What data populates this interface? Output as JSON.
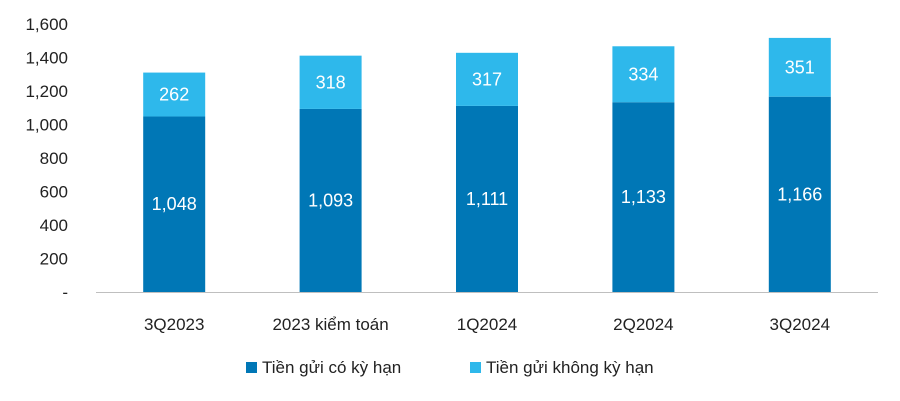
{
  "chart_data": {
    "type": "bar",
    "stacked": true,
    "categories": [
      "3Q2023",
      "2023 kiểm toán",
      "1Q2024",
      "2Q2024",
      "3Q2024"
    ],
    "series": [
      {
        "name": "Tiền gửi có kỳ hạn",
        "values": [
          1048,
          1093,
          1111,
          1133,
          1166
        ],
        "labels": [
          "1,048",
          "1,093",
          "1,111",
          "1,133",
          "1,166"
        ],
        "color": "#0077B6"
      },
      {
        "name": "Tiền gửi không kỳ hạn",
        "values": [
          262,
          318,
          317,
          334,
          351
        ],
        "labels": [
          "262",
          "318",
          "317",
          "334",
          "351"
        ],
        "color": "#2EB8EB"
      }
    ],
    "ylim": [
      0,
      1600
    ],
    "yticks": [
      0,
      200,
      400,
      600,
      800,
      1000,
      1200,
      1400,
      1600
    ],
    "ytick_labels": [
      "-",
      "200",
      "400",
      "600",
      "800",
      "1,000",
      "1,200",
      "1,400",
      "1,600"
    ],
    "grid": false,
    "legend": "bottom"
  }
}
